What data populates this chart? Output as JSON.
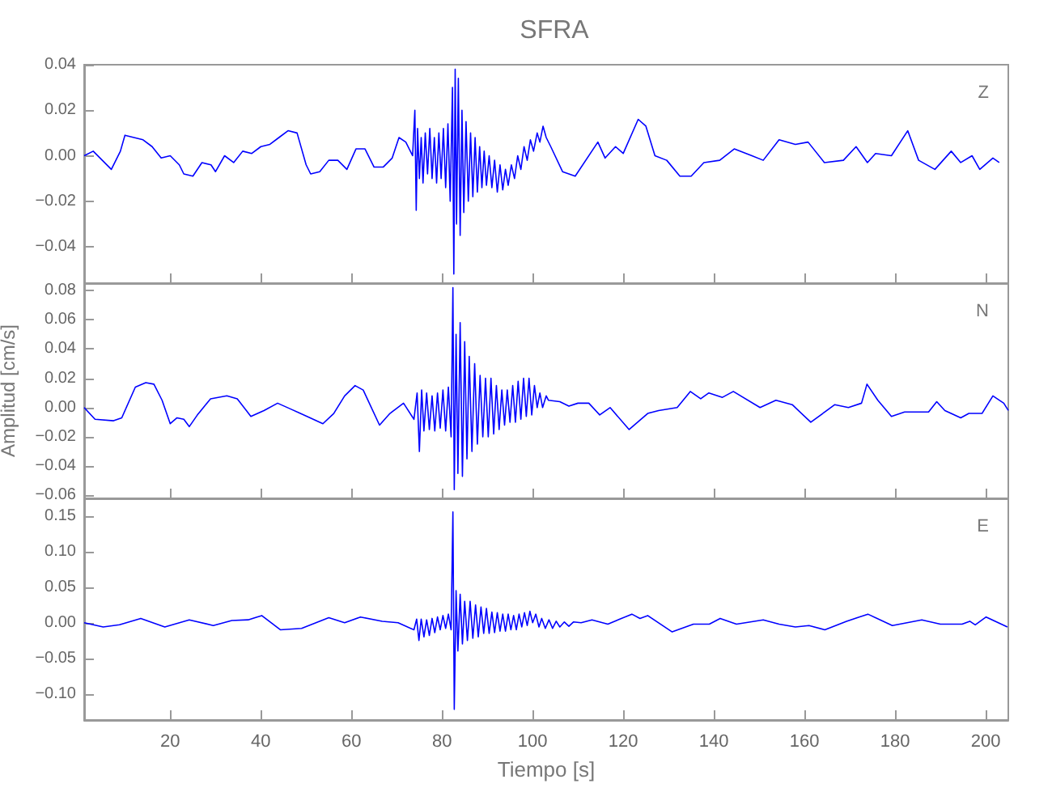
{
  "chart_data": [
    {
      "type": "line",
      "title": "SFRA",
      "annotations": [
        "Z"
      ],
      "grid": false,
      "marker": "none",
      "tick_labels": "y",
      "xlim": [
        1,
        205
      ],
      "xticks": [
        20,
        40,
        60,
        80,
        100,
        120,
        140,
        160,
        180,
        200
      ],
      "ylim": [
        -0.056,
        0.04
      ],
      "yticks": [
        {
          "value": -0.04,
          "label": "−0.04"
        },
        {
          "value": -0.02,
          "label": "−0.02"
        },
        {
          "value": 0,
          "label": "0.00"
        },
        {
          "value": 0.02,
          "label": "0.02"
        },
        {
          "value": 0.04,
          "label": "0.04"
        }
      ],
      "series": [
        {
          "color": "#0000ff",
          "x": [
            1,
            3,
            5,
            7,
            9,
            10,
            12,
            14,
            16,
            18,
            20,
            22,
            23,
            25,
            27,
            29,
            30,
            32,
            34,
            36,
            38,
            40,
            42,
            44,
            46,
            48,
            50,
            51,
            53,
            55,
            57,
            59,
            61,
            63,
            65,
            67,
            69,
            70.5,
            72,
            73.5,
            74,
            74.3,
            74.6,
            75,
            75.4,
            75.8,
            76.3,
            76.8,
            77.3,
            77.8,
            78.3,
            78.8,
            79.3,
            79.8,
            80.3,
            80.8,
            81.3,
            81.8,
            82.3,
            82.6,
            82.9,
            83.2,
            83.6,
            84,
            84.4,
            84.8,
            85.3,
            85.8,
            86.3,
            86.8,
            87.3,
            87.8,
            88.3,
            88.8,
            89.3,
            89.8,
            90.4,
            91,
            91.6,
            92.2,
            92.8,
            93.4,
            94,
            94.6,
            95.3,
            96,
            96.7,
            97.4,
            98.1,
            98.8,
            99.5,
            100.2,
            101,
            101.6,
            102.3,
            103,
            104,
            106.6,
            109.4,
            114.4,
            116,
            118.3,
            120,
            123.3,
            125,
            127,
            129.6,
            132.5,
            135,
            137.8,
            141.3,
            144.5,
            148.4,
            150.9,
            154.4,
            158,
            160.8,
            164.4,
            168.6,
            171.4,
            173.9,
            175.7,
            179.2,
            182.8,
            185.2,
            188.8,
            192.4,
            194.5,
            197,
            198.7,
            201.6,
            203
          ],
          "values": [
            0,
            0.002,
            -0.002,
            -0.006,
            0.002,
            0.009,
            0.008,
            0.007,
            0.004,
            -0.001,
            0,
            -0.004,
            -0.008,
            -0.009,
            -0.003,
            -0.004,
            -0.007,
            0,
            -0.003,
            0.002,
            0.001,
            0.004,
            0.005,
            0.008,
            0.011,
            0.01,
            -0.004,
            -0.008,
            -0.007,
            -0.002,
            -0.002,
            -0.006,
            0.003,
            0.003,
            -0.005,
            -0.005,
            -0.001,
            0.008,
            0.006,
            0,
            0.02,
            -0.024,
            0.012,
            -0.01,
            0.008,
            -0.012,
            0.01,
            -0.008,
            0.012,
            -0.01,
            0.008,
            -0.012,
            0.01,
            -0.01,
            0.012,
            -0.014,
            0.014,
            -0.02,
            0.03,
            -0.052,
            0.038,
            -0.03,
            0.034,
            -0.035,
            0.02,
            -0.025,
            0.015,
            -0.02,
            0.01,
            -0.018,
            0.008,
            -0.016,
            0.004,
            -0.014,
            0.002,
            -0.013,
            0,
            -0.014,
            -0.002,
            -0.016,
            -0.004,
            -0.015,
            -0.006,
            -0.013,
            -0.004,
            -0.01,
            0,
            -0.006,
            0.004,
            -0.002,
            0.007,
            0.002,
            0.01,
            0.006,
            0.013,
            0.008,
            0.004,
            -0.007,
            -0.009,
            0.006,
            -0.001,
            0.004,
            0.001,
            0.016,
            0.013,
            0,
            -0.002,
            -0.009,
            -0.009,
            -0.003,
            -0.002,
            0.003,
            0,
            -0.002,
            0.007,
            0.005,
            0.006,
            -0.003,
            -0.002,
            0.004,
            -0.003,
            0.001,
            0,
            0.011,
            -0.002,
            -0.006,
            0.002,
            -0.003,
            0,
            -0.006,
            -0.001,
            -0.003
          ]
        }
      ]
    },
    {
      "type": "line",
      "ylabel": "Amplitud [cm/s]",
      "annotations": [
        "N"
      ],
      "grid": false,
      "marker": "none",
      "tick_labels": "y",
      "xlim": [
        1,
        205
      ],
      "xticks": [
        20,
        40,
        60,
        80,
        100,
        120,
        140,
        160,
        180,
        200
      ],
      "ylim": [
        -0.062,
        0.085
      ],
      "yticks": [
        {
          "value": -0.06,
          "label": "−0.06"
        },
        {
          "value": -0.04,
          "label": "−0.04"
        },
        {
          "value": -0.02,
          "label": "−0.02"
        },
        {
          "value": 0,
          "label": "0.00"
        },
        {
          "value": 0.02,
          "label": "0.02"
        },
        {
          "value": 0.04,
          "label": "0.04"
        },
        {
          "value": 0.06,
          "label": "0.06"
        },
        {
          "value": 0.08,
          "label": "0.08"
        }
      ],
      "series": [
        {
          "color": "#0000ff",
          "x": [
            1,
            3.4,
            7.5,
            9.3,
            12.3,
            14.6,
            16.4,
            18.2,
            20,
            21.5,
            23,
            24.2,
            26,
            28.9,
            32.5,
            34.8,
            37.8,
            40.7,
            43.7,
            46.6,
            50.2,
            53.7,
            56.1,
            58.5,
            60.8,
            62.6,
            66.2,
            68.5,
            71.5,
            73.8,
            74.5,
            75,
            75.5,
            76,
            76.6,
            77.2,
            77.8,
            78.4,
            79,
            79.6,
            80.2,
            80.8,
            81.4,
            82,
            82.4,
            82.7,
            83.1,
            83.5,
            84,
            84.5,
            85,
            85.5,
            86,
            86.6,
            87.2,
            87.8,
            88.4,
            89,
            89.6,
            90.2,
            90.8,
            91.4,
            92,
            92.6,
            93.2,
            93.8,
            94.4,
            95,
            95.6,
            96.2,
            96.8,
            97.4,
            98,
            98.6,
            99.2,
            99.8,
            100.4,
            101,
            101.6,
            102.2,
            103,
            103.5,
            106,
            108,
            110,
            112.4,
            114.8,
            117.1,
            121.3,
            125.4,
            127.8,
            131.9,
            134.8,
            137.1,
            138.9,
            141.9,
            144.3,
            150.2,
            153.7,
            157.3,
            161.4,
            166.7,
            169.7,
            172.6,
            173.8,
            176.2,
            179.2,
            182.1,
            187.4,
            189.2,
            191,
            194.5,
            196.3,
            199.2,
            201.6,
            204,
            205
          ],
          "values": [
            0,
            -0.008,
            -0.009,
            -0.007,
            0.014,
            0.017,
            0.016,
            0.005,
            -0.011,
            -0.007,
            -0.008,
            -0.013,
            -0.005,
            0.006,
            0.008,
            0.006,
            -0.006,
            -0.002,
            0.003,
            -0.001,
            -0.006,
            -0.011,
            -0.004,
            0.008,
            0.015,
            0.012,
            -0.012,
            -0.004,
            0.003,
            -0.008,
            0.01,
            -0.03,
            0.012,
            -0.016,
            0.01,
            -0.015,
            0.008,
            -0.016,
            0.01,
            -0.014,
            0.012,
            -0.016,
            0.014,
            -0.02,
            0.082,
            -0.056,
            0.05,
            -0.045,
            0.058,
            -0.047,
            0.045,
            -0.035,
            0.035,
            -0.03,
            0.03,
            -0.025,
            0.022,
            -0.02,
            0.02,
            -0.02,
            0.02,
            -0.018,
            0.015,
            -0.015,
            0.012,
            -0.012,
            0.012,
            -0.01,
            0.015,
            -0.01,
            0.018,
            -0.008,
            0.02,
            -0.006,
            0.02,
            -0.005,
            0.015,
            0,
            0.01,
            0,
            0.008,
            0.005,
            0.004,
            0.001,
            0.003,
            0.003,
            -0.005,
            0,
            -0.015,
            -0.004,
            -0.002,
            0,
            0.011,
            0.006,
            0.01,
            0.007,
            0.011,
            0,
            0.005,
            0.002,
            -0.01,
            0.002,
            0,
            0.003,
            0.016,
            0.005,
            -0.006,
            -0.003,
            -0.003,
            0.004,
            -0.002,
            -0.007,
            -0.004,
            -0.004,
            0.008,
            0.003,
            -0.002
          ]
        }
      ]
    },
    {
      "type": "line",
      "xlabel": "Tiempo [s]",
      "annotations": [
        "E"
      ],
      "grid": false,
      "marker": "none",
      "xlim": [
        1,
        205
      ],
      "xticks": [
        20,
        40,
        60,
        80,
        100,
        120,
        140,
        160,
        180,
        200
      ],
      "ylim": [
        -0.137,
        0.175
      ],
      "yticks": [
        {
          "value": -0.1,
          "label": "−0.10"
        },
        {
          "value": -0.05,
          "label": "−0.05"
        },
        {
          "value": 0,
          "label": "0.00"
        },
        {
          "value": 0.05,
          "label": "0.05"
        },
        {
          "value": 0.1,
          "label": "0.10"
        },
        {
          "value": 0.15,
          "label": "0.15"
        }
      ],
      "series": [
        {
          "color": "#0000ff",
          "x": [
            1,
            5.2,
            8.8,
            13.5,
            18.8,
            24.2,
            29.5,
            33.6,
            37.2,
            40.2,
            44.3,
            49,
            55,
            58.5,
            62,
            66.8,
            70.3,
            73.8,
            74.4,
            74.9,
            75.4,
            76,
            76.6,
            77.2,
            77.8,
            78.4,
            79,
            79.6,
            80.2,
            80.8,
            81.4,
            82,
            82.4,
            82.7,
            83.1,
            83.5,
            84,
            84.5,
            85,
            85.6,
            86.2,
            86.8,
            87.4,
            88,
            88.6,
            89.2,
            89.8,
            90.4,
            91,
            91.6,
            92.2,
            92.8,
            93.4,
            94,
            94.6,
            95.2,
            95.8,
            96.4,
            97,
            97.6,
            98.2,
            98.8,
            99.4,
            100,
            100.7,
            101.4,
            102,
            102.8,
            103.6,
            104.4,
            105.2,
            106,
            107,
            108,
            109,
            110.7,
            113.1,
            116.6,
            121.9,
            123.7,
            125.4,
            130.8,
            135.5,
            139,
            141.4,
            145,
            150.9,
            154.4,
            158,
            161,
            164.5,
            169.3,
            174,
            179.4,
            185.9,
            190,
            194.8,
            196.5,
            197.7,
            200.1,
            204.8
          ],
          "values": [
            0,
            -0.006,
            -0.003,
            0.006,
            -0.006,
            0.004,
            -0.004,
            0.003,
            0.004,
            0.01,
            -0.01,
            -0.008,
            0.007,
            0,
            0.008,
            0.002,
            0,
            -0.01,
            0.005,
            -0.025,
            0.005,
            -0.02,
            0.004,
            -0.018,
            0.006,
            -0.014,
            0.008,
            -0.01,
            0.01,
            -0.008,
            0.012,
            -0.01,
            0.156,
            -0.122,
            0.045,
            -0.04,
            0.04,
            -0.03,
            0.03,
            -0.025,
            0.03,
            -0.022,
            0.025,
            -0.02,
            0.022,
            -0.015,
            0.02,
            -0.015,
            0.015,
            -0.014,
            0.014,
            -0.012,
            0.012,
            -0.012,
            0.012,
            -0.01,
            0.01,
            -0.01,
            0.012,
            -0.006,
            0.014,
            -0.004,
            0.016,
            0,
            0.012,
            -0.006,
            0.006,
            -0.008,
            0.004,
            -0.008,
            0.002,
            -0.006,
            0.001,
            -0.005,
            0.001,
            0,
            0.004,
            -0.002,
            0.012,
            0.006,
            0.01,
            -0.013,
            -0.002,
            -0.002,
            0.006,
            -0.002,
            0.004,
            -0.002,
            -0.006,
            -0.004,
            -0.01,
            0.002,
            0.012,
            -0.004,
            0.004,
            -0.002,
            -0.002,
            0.002,
            -0.003,
            0.008,
            -0.006
          ]
        }
      ]
    }
  ]
}
